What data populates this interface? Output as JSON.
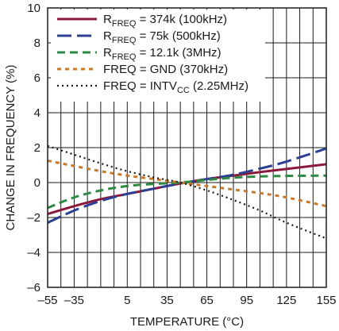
{
  "chart_data": {
    "type": "line",
    "xlabel": "TEMPERATURE (°C)",
    "ylabel": "CHANGE IN FREQUENCY (%)",
    "xlim": [
      -55,
      155
    ],
    "ylim": [
      -6,
      10
    ],
    "x_ticks": [
      -55,
      -35,
      5,
      35,
      65,
      95,
      125,
      155
    ],
    "x_tick_labels": [
      "–55",
      "–35",
      "5",
      "35",
      "65",
      "95",
      "125",
      "155"
    ],
    "y_ticks": [
      -6,
      -4,
      -2,
      0,
      2,
      4,
      6,
      8,
      10
    ],
    "y_tick_labels": [
      "–6",
      "–4",
      "–2",
      "0",
      "2",
      "4",
      "6",
      "8",
      "10"
    ],
    "x_gridlines": [
      -55,
      -45,
      -35,
      -25,
      -15,
      -5,
      5,
      15,
      25,
      35,
      45,
      55,
      65,
      75,
      85,
      95,
      105,
      115,
      125,
      135,
      145,
      155
    ],
    "grid": true,
    "legend_position": "top-left",
    "series": [
      {
        "legend_prefix": "R",
        "legend_sub": "FREQ",
        "legend_suffix": " = 374k (100kHz)",
        "color": "#8b1a3a",
        "dash": "solid",
        "x": [
          -55,
          -35,
          -15,
          5,
          25,
          45,
          65,
          85,
          105,
          125,
          155
        ],
        "y": [
          -1.8,
          -1.35,
          -0.95,
          -0.65,
          -0.35,
          -0.05,
          0.2,
          0.4,
          0.6,
          0.78,
          1.05
        ]
      },
      {
        "legend_prefix": "R",
        "legend_sub": "FREQ",
        "legend_suffix": " = 75k (500kHz)",
        "color": "#2b3f93",
        "dash": "long",
        "x": [
          -55,
          -35,
          -15,
          5,
          25,
          45,
          65,
          85,
          105,
          125,
          155
        ],
        "y": [
          -2.3,
          -1.6,
          -1.05,
          -0.65,
          -0.35,
          -0.05,
          0.2,
          0.45,
          0.8,
          1.2,
          1.95
        ]
      },
      {
        "legend_prefix": "R",
        "legend_sub": "FREQ",
        "legend_suffix": " = 12.1k (3MHz)",
        "color": "#2e8a43",
        "dash": "medium",
        "x": [
          -55,
          -35,
          -15,
          5,
          25,
          45,
          65,
          85,
          105,
          125,
          155
        ],
        "y": [
          -1.45,
          -0.85,
          -0.45,
          -0.2,
          -0.08,
          0.0,
          0.15,
          0.28,
          0.35,
          0.38,
          0.4
        ]
      },
      {
        "legend_prefix": "FREQ = GND (370kHz)",
        "legend_sub": "",
        "legend_suffix": "",
        "color": "#c8782e",
        "dash": "short",
        "x": [
          -55,
          -35,
          -15,
          5,
          25,
          45,
          65,
          85,
          105,
          125,
          155
        ],
        "y": [
          1.25,
          0.95,
          0.65,
          0.4,
          0.2,
          0.0,
          -0.2,
          -0.4,
          -0.6,
          -0.85,
          -1.35
        ]
      },
      {
        "legend_prefix": "FREQ = INTV",
        "legend_sub": "CC",
        "legend_suffix": " (2.25MHz)",
        "color": "#1a1a1a",
        "dash": "dotted",
        "x": [
          -55,
          -35,
          -15,
          5,
          25,
          45,
          65,
          85,
          105,
          125,
          155
        ],
        "y": [
          2.1,
          1.6,
          1.1,
          0.65,
          0.3,
          0.0,
          -0.45,
          -1.0,
          -1.6,
          -2.3,
          -3.2
        ]
      }
    ]
  }
}
